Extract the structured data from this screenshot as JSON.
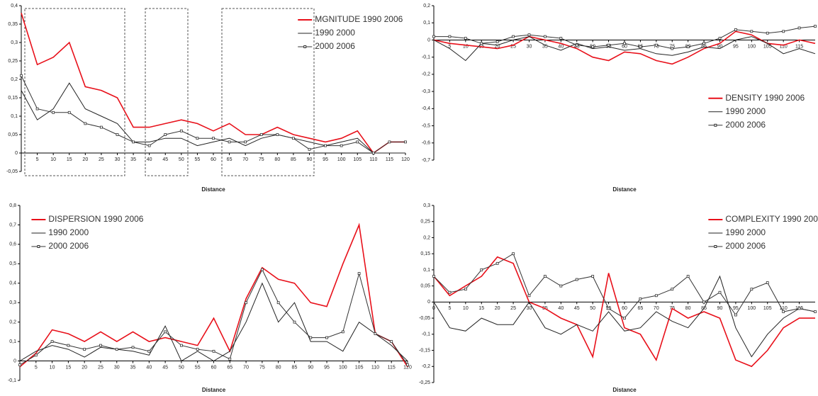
{
  "chart_data": [
    {
      "type": "line",
      "x_label": "Distance",
      "legend": "upper right",
      "xlim": [
        0,
        120
      ],
      "ylim": [
        -0.05,
        0.4
      ],
      "xticks": [
        5,
        10,
        15,
        20,
        25,
        30,
        35,
        40,
        45,
        50,
        55,
        60,
        65,
        70,
        75,
        80,
        85,
        90,
        95,
        100,
        105,
        110,
        115,
        120
      ],
      "yticks": [
        {
          "value": -0.05,
          "label": "-0,05"
        },
        0,
        {
          "value": 0.05,
          "label": "0,05"
        },
        {
          "value": 0.1,
          "label": "0,1"
        },
        {
          "value": 0.15,
          "label": "0,15"
        },
        {
          "value": 0.2,
          "label": "0,2"
        },
        {
          "value": 0.25,
          "label": "0,25"
        },
        {
          "value": 0.3,
          "label": "0,3"
        },
        {
          "value": 0.35,
          "label": "0,35"
        },
        {
          "value": 0.4,
          "label": "0,4"
        }
      ],
      "x": [
        0,
        5,
        10,
        15,
        20,
        25,
        30,
        35,
        40,
        45,
        50,
        55,
        60,
        65,
        70,
        75,
        80,
        85,
        90,
        95,
        100,
        105,
        110,
        115,
        120
      ],
      "series": [
        {
          "name": "MGNITUDE 1990 2006",
          "color": "#e8101a",
          "values": [
            0.38,
            0.24,
            0.26,
            0.3,
            0.18,
            0.17,
            0.15,
            0.07,
            0.07,
            0.08,
            0.09,
            0.08,
            0.06,
            0.08,
            0.05,
            0.05,
            0.07,
            0.05,
            0.04,
            0.03,
            0.04,
            0.06,
            0.0,
            0.03,
            0.03
          ]
        },
        {
          "name": "1990 2000",
          "color": "#222222",
          "values": [
            0.17,
            0.09,
            0.12,
            0.19,
            0.12,
            0.1,
            0.08,
            0.03,
            0.03,
            0.04,
            0.04,
            0.02,
            0.03,
            0.04,
            0.02,
            0.04,
            0.05,
            0.04,
            0.03,
            0.02,
            0.03,
            0.04,
            0.0,
            0.0,
            0.0
          ]
        },
        {
          "name": "2000 2006",
          "color": "#333333",
          "marker": "square",
          "values": [
            0.21,
            0.12,
            0.11,
            0.11,
            0.08,
            0.07,
            0.05,
            0.03,
            0.02,
            0.05,
            0.06,
            0.04,
            0.04,
            0.03,
            0.03,
            0.05,
            0.05,
            0.04,
            0.01,
            0.02,
            0.02,
            0.03,
            0.0,
            0.03,
            0.03
          ]
        }
      ]
    },
    {
      "type": "line",
      "x_label": "Distance",
      "legend": "center right",
      "xlim": [
        0,
        120
      ],
      "ylim": [
        -0.7,
        0.2
      ],
      "xticks": [
        5,
        10,
        15,
        20,
        25,
        30,
        35,
        40,
        45,
        50,
        55,
        60,
        65,
        70,
        75,
        80,
        85,
        90,
        95,
        100,
        105,
        110,
        115
      ],
      "yticks": [
        {
          "value": 0.2,
          "label": "0,2"
        },
        {
          "value": 0.1,
          "label": "0,1"
        },
        0,
        {
          "value": -0.1,
          "label": "-0,1"
        },
        {
          "value": -0.2,
          "label": "-0,2"
        },
        {
          "value": -0.3,
          "label": "-0,3"
        },
        {
          "value": -0.4,
          "label": "-0,4"
        },
        {
          "value": -0.5,
          "label": "-0,5"
        },
        {
          "value": -0.6,
          "label": "-0,6"
        },
        {
          "value": -0.7,
          "label": "-0,7"
        }
      ],
      "x": [
        0,
        5,
        10,
        15,
        20,
        25,
        30,
        35,
        40,
        45,
        50,
        55,
        60,
        65,
        70,
        75,
        80,
        85,
        90,
        95,
        100,
        105,
        110,
        115,
        120
      ],
      "series": [
        {
          "name": "DENSITY 1990 2006",
          "color": "#e8101a",
          "values": [
            0.0,
            -0.02,
            -0.03,
            -0.04,
            -0.05,
            -0.03,
            0.02,
            0.0,
            -0.02,
            -0.05,
            -0.1,
            -0.12,
            -0.07,
            -0.08,
            -0.12,
            -0.14,
            -0.1,
            -0.05,
            -0.02,
            0.05,
            0.03,
            -0.02,
            -0.03,
            0.0,
            -0.02
          ]
        },
        {
          "name": "1990 2000",
          "color": "#222222",
          "values": [
            0.0,
            -0.05,
            -0.12,
            -0.02,
            -0.03,
            0.0,
            0.02,
            -0.03,
            -0.06,
            -0.02,
            -0.05,
            -0.04,
            -0.06,
            -0.05,
            -0.08,
            -0.09,
            -0.07,
            -0.04,
            -0.05,
            0.0,
            0.02,
            -0.02,
            -0.08,
            -0.05,
            -0.08
          ]
        },
        {
          "name": "2000 2006",
          "color": "#333333",
          "marker": "square",
          "values": [
            0.02,
            0.02,
            0.01,
            -0.02,
            -0.01,
            0.02,
            0.03,
            0.02,
            0.01,
            -0.03,
            -0.04,
            -0.03,
            -0.02,
            -0.04,
            -0.03,
            -0.05,
            -0.04,
            -0.02,
            0.01,
            0.06,
            0.05,
            0.04,
            0.05,
            0.07,
            0.08
          ]
        }
      ]
    },
    {
      "type": "line",
      "x_label": "Distance",
      "legend": "upper left",
      "xlim": [
        0,
        120
      ],
      "ylim": [
        -0.1,
        0.8
      ],
      "xticks": [
        5,
        10,
        15,
        20,
        25,
        30,
        35,
        40,
        45,
        50,
        55,
        60,
        65,
        70,
        75,
        80,
        85,
        90,
        95,
        100,
        105,
        110,
        115,
        120
      ],
      "yticks": [
        {
          "value": -0.1,
          "label": "-0,1"
        },
        0,
        {
          "value": 0.1,
          "label": "0,1"
        },
        {
          "value": 0.2,
          "label": "0,2"
        },
        {
          "value": 0.3,
          "label": "0,3"
        },
        {
          "value": 0.4,
          "label": "0,4"
        },
        {
          "value": 0.5,
          "label": "0,5"
        },
        {
          "value": 0.6,
          "label": "0,6"
        },
        {
          "value": 0.7,
          "label": "0,7"
        },
        {
          "value": 0.8,
          "label": "0,8"
        }
      ],
      "x": [
        0,
        5,
        10,
        15,
        20,
        25,
        30,
        35,
        40,
        45,
        50,
        55,
        60,
        65,
        70,
        75,
        80,
        85,
        90,
        95,
        100,
        105,
        110,
        115,
        120
      ],
      "series": [
        {
          "name": "DISPERSION 1990 2006",
          "color": "#e8101a",
          "values": [
            -0.03,
            0.04,
            0.16,
            0.14,
            0.1,
            0.15,
            0.1,
            0.15,
            0.1,
            0.12,
            0.1,
            0.08,
            0.22,
            0.05,
            0.32,
            0.48,
            0.42,
            0.4,
            0.3,
            0.28,
            0.5,
            0.7,
            0.14,
            0.1,
            -0.03
          ]
        },
        {
          "name": "1990 2000",
          "color": "#222222",
          "values": [
            0.0,
            0.05,
            0.08,
            0.06,
            0.02,
            0.07,
            0.06,
            0.05,
            0.03,
            0.18,
            0.0,
            0.05,
            0.0,
            0.05,
            0.2,
            0.4,
            0.2,
            0.3,
            0.1,
            0.1,
            0.05,
            0.2,
            0.14,
            0.08,
            0.0
          ]
        },
        {
          "name": "2000 2006",
          "color": "#333333",
          "marker": "square",
          "values": [
            -0.02,
            0.03,
            0.1,
            0.08,
            0.06,
            0.08,
            0.06,
            0.07,
            0.05,
            0.15,
            0.08,
            0.06,
            0.05,
            0.01,
            0.3,
            0.47,
            0.3,
            0.2,
            0.12,
            0.12,
            0.15,
            0.45,
            0.14,
            0.1,
            -0.02
          ]
        }
      ]
    },
    {
      "type": "line",
      "x_label": "Distance",
      "legend": "upper right",
      "xlim": [
        0,
        120
      ],
      "ylim": [
        -0.25,
        0.3
      ],
      "xticks": [
        0,
        5,
        10,
        15,
        20,
        25,
        30,
        35,
        40,
        45,
        50,
        55,
        60,
        65,
        70,
        75,
        80,
        85,
        90,
        95,
        100,
        105,
        110,
        115
      ],
      "yticks": [
        {
          "value": -0.25,
          "label": "-0,25"
        },
        {
          "value": -0.2,
          "label": "-0,2"
        },
        {
          "value": -0.15,
          "label": "-0,15"
        },
        {
          "value": -0.1,
          "label": "-0,1"
        },
        {
          "value": -0.05,
          "label": "-0,05"
        },
        0,
        {
          "value": 0.05,
          "label": "0,05"
        },
        {
          "value": 0.1,
          "label": "0,1"
        },
        {
          "value": 0.15,
          "label": "0,15"
        },
        {
          "value": 0.2,
          "label": "0,2"
        },
        {
          "value": 0.25,
          "label": "0,25"
        },
        {
          "value": 0.3,
          "label": "0,3"
        }
      ],
      "x": [
        0,
        5,
        10,
        15,
        20,
        25,
        30,
        35,
        40,
        45,
        50,
        55,
        60,
        65,
        70,
        75,
        80,
        85,
        90,
        95,
        100,
        105,
        110,
        115,
        120
      ],
      "series": [
        {
          "name": "COMPLEXITY 1990 200",
          "color": "#e8101a",
          "values": [
            0.08,
            0.02,
            0.05,
            0.08,
            0.14,
            0.12,
            0.0,
            -0.02,
            -0.05,
            -0.07,
            -0.17,
            0.09,
            -0.08,
            -0.1,
            -0.18,
            -0.02,
            -0.05,
            -0.03,
            -0.05,
            -0.18,
            -0.2,
            -0.15,
            -0.08,
            -0.05,
            -0.05
          ]
        },
        {
          "name": "1990 2000",
          "color": "#222222",
          "values": [
            0.0,
            -0.08,
            -0.09,
            -0.05,
            -0.07,
            -0.07,
            0.0,
            -0.08,
            -0.1,
            -0.07,
            -0.09,
            -0.03,
            -0.09,
            -0.08,
            -0.03,
            -0.06,
            -0.08,
            -0.02,
            0.08,
            -0.08,
            -0.17,
            -0.1,
            -0.05,
            -0.02,
            -0.03
          ]
        },
        {
          "name": "2000 2006",
          "color": "#333333",
          "marker": "square",
          "values": [
            0.08,
            0.03,
            0.04,
            0.1,
            0.12,
            0.15,
            0.02,
            0.08,
            0.05,
            0.07,
            0.08,
            -0.02,
            -0.05,
            0.01,
            0.02,
            0.04,
            0.08,
            0.0,
            0.03,
            -0.04,
            0.04,
            0.06,
            -0.03,
            -0.02,
            -0.03
          ]
        }
      ]
    }
  ]
}
